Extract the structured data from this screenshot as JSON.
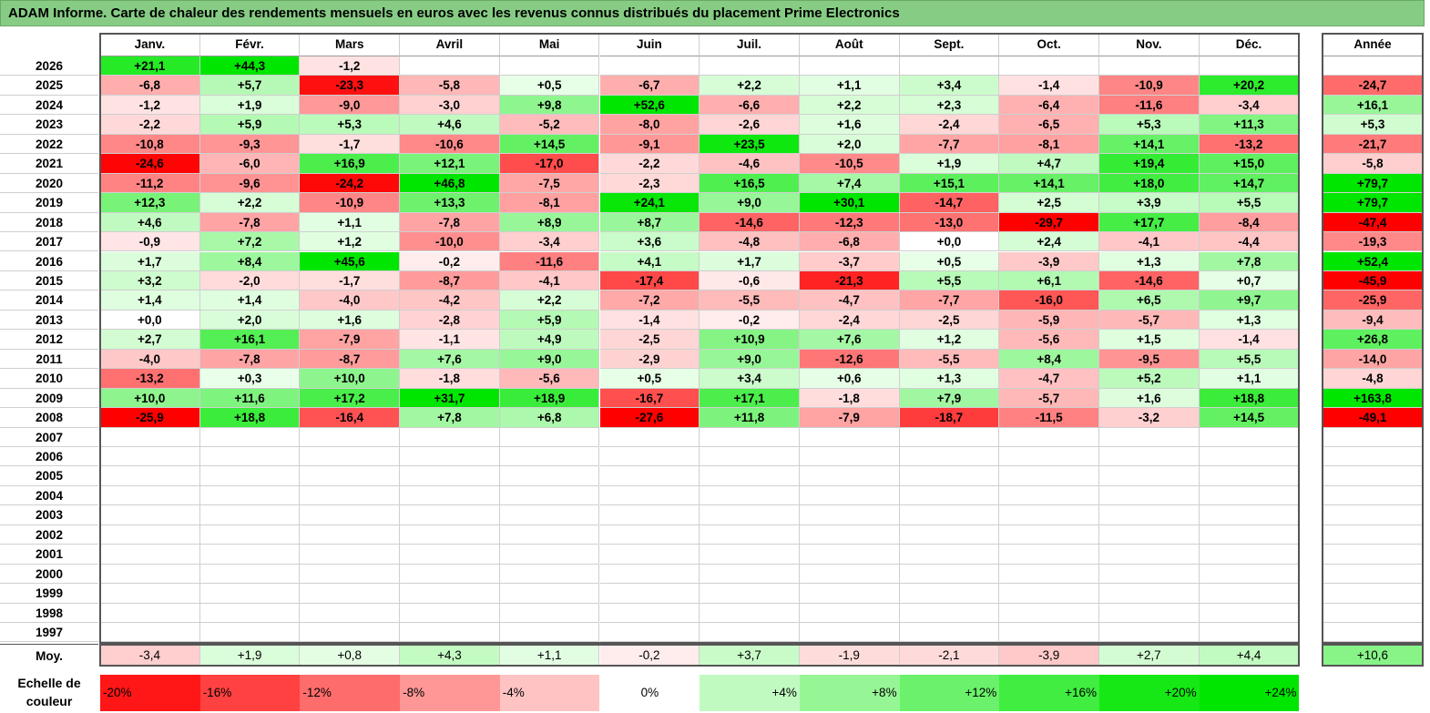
{
  "title": "ADAM Informe. Carte de chaleur des rendements mensuels en euros avec les revenus connus distribués du placement Prime Electronics",
  "chart_data": {
    "type": "heatmap",
    "months": [
      "Janv.",
      "Févr.",
      "Mars",
      "Avril",
      "Mai",
      "Juin",
      "Juil.",
      "Août",
      "Sept.",
      "Oct.",
      "Nov.",
      "Déc."
    ],
    "year_column_label": "Année",
    "average_row_label": "Moy.",
    "rows": [
      {
        "year": "2026",
        "months": [
          "+21,1",
          "+44,3",
          "-1,2",
          "",
          "",
          "",
          "",
          "",
          "",
          "",
          "",
          ""
        ],
        "annual": ""
      },
      {
        "year": "2025",
        "months": [
          "-6,8",
          "+5,7",
          "-23,3",
          "-5,8",
          "+0,5",
          "-6,7",
          "+2,2",
          "+1,1",
          "+3,4",
          "-1,4",
          "-10,9",
          "+20,2"
        ],
        "annual": "-24,7"
      },
      {
        "year": "2024",
        "months": [
          "-1,2",
          "+1,9",
          "-9,0",
          "-3,0",
          "+9,8",
          "+52,6",
          "-6,6",
          "+2,2",
          "+2,3",
          "-6,4",
          "-11,6",
          "-3,4"
        ],
        "annual": "+16,1"
      },
      {
        "year": "2023",
        "months": [
          "-2,2",
          "+5,9",
          "+5,3",
          "+4,6",
          "-5,2",
          "-8,0",
          "-2,6",
          "+1,6",
          "-2,4",
          "-6,5",
          "+5,3",
          "+11,3"
        ],
        "annual": "+5,3"
      },
      {
        "year": "2022",
        "months": [
          "-10,8",
          "-9,3",
          "-1,7",
          "-10,6",
          "+14,5",
          "-9,1",
          "+23,5",
          "+2,0",
          "-7,7",
          "-8,1",
          "+14,1",
          "-13,2"
        ],
        "annual": "-21,7"
      },
      {
        "year": "2021",
        "months": [
          "-24,6",
          "-6,0",
          "+16,9",
          "+12,1",
          "-17,0",
          "-2,2",
          "-4,6",
          "-10,5",
          "+1,9",
          "+4,7",
          "+19,4",
          "+15,0"
        ],
        "annual": "-5,8"
      },
      {
        "year": "2020",
        "months": [
          "-11,2",
          "-9,6",
          "-24,2",
          "+46,8",
          "-7,5",
          "-2,3",
          "+16,5",
          "+7,4",
          "+15,1",
          "+14,1",
          "+18,0",
          "+14,7"
        ],
        "annual": "+79,7"
      },
      {
        "year": "2019",
        "months": [
          "+12,3",
          "+2,2",
          "-10,9",
          "+13,3",
          "-8,1",
          "+24,1",
          "+9,0",
          "+30,1",
          "-14,7",
          "+2,5",
          "+3,9",
          "+5,5"
        ],
        "annual": "+79,7"
      },
      {
        "year": "2018",
        "months": [
          "+4,6",
          "-7,8",
          "+1,1",
          "-7,8",
          "+8,9",
          "+8,7",
          "-14,6",
          "-12,3",
          "-13,0",
          "-29,7",
          "+17,7",
          "-8,4"
        ],
        "annual": "-47,4"
      },
      {
        "year": "2017",
        "months": [
          "-0,9",
          "+7,2",
          "+1,2",
          "-10,0",
          "-3,4",
          "+3,6",
          "-4,8",
          "-6,8",
          "+0,0",
          "+2,4",
          "-4,1",
          "-4,4"
        ],
        "annual": "-19,3"
      },
      {
        "year": "2016",
        "months": [
          "+1,7",
          "+8,4",
          "+45,6",
          "-0,2",
          "-11,6",
          "+4,1",
          "+1,7",
          "-3,7",
          "+0,5",
          "-3,9",
          "+1,3",
          "+7,8"
        ],
        "annual": "+52,4"
      },
      {
        "year": "2015",
        "months": [
          "+3,2",
          "-2,0",
          "-1,7",
          "-8,7",
          "-4,1",
          "-17,4",
          "-0,6",
          "-21,3",
          "+5,5",
          "+6,1",
          "-14,6",
          "+0,7"
        ],
        "annual": "-45,9"
      },
      {
        "year": "2014",
        "months": [
          "+1,4",
          "+1,4",
          "-4,0",
          "-4,2",
          "+2,2",
          "-7,2",
          "-5,5",
          "-4,7",
          "-7,7",
          "-16,0",
          "+6,5",
          "+9,7"
        ],
        "annual": "-25,9"
      },
      {
        "year": "2013",
        "months": [
          "+0,0",
          "+2,0",
          "+1,6",
          "-2,8",
          "+5,9",
          "-1,4",
          "-0,2",
          "-2,4",
          "-2,5",
          "-5,9",
          "-5,7",
          "+1,3"
        ],
        "annual": "-9,4"
      },
      {
        "year": "2012",
        "months": [
          "+2,7",
          "+16,1",
          "-7,9",
          "-1,1",
          "+4,9",
          "-2,5",
          "+10,9",
          "+7,6",
          "+1,2",
          "-5,6",
          "+1,5",
          "-1,4"
        ],
        "annual": "+26,8"
      },
      {
        "year": "2011",
        "months": [
          "-4,0",
          "-7,8",
          "-8,7",
          "+7,6",
          "+9,0",
          "-2,9",
          "+9,0",
          "-12,6",
          "-5,5",
          "+8,4",
          "-9,5",
          "+5,5"
        ],
        "annual": "-14,0"
      },
      {
        "year": "2010",
        "months": [
          "-13,2",
          "+0,3",
          "+10,0",
          "-1,8",
          "-5,6",
          "+0,5",
          "+3,4",
          "+0,6",
          "+1,3",
          "-4,7",
          "+5,2",
          "+1,1"
        ],
        "annual": "-4,8"
      },
      {
        "year": "2009",
        "months": [
          "+10,0",
          "+11,6",
          "+17,2",
          "+31,7",
          "+18,9",
          "-16,7",
          "+17,1",
          "-1,8",
          "+7,9",
          "-5,7",
          "+1,6",
          "+18,8"
        ],
        "annual": "+163,8"
      },
      {
        "year": "2008",
        "months": [
          "-25,9",
          "+18,8",
          "-16,4",
          "+7,8",
          "+6,8",
          "-27,6",
          "+11,8",
          "-7,9",
          "-18,7",
          "-11,5",
          "-3,2",
          "+14,5"
        ],
        "annual": "-49,1"
      },
      {
        "year": "2007",
        "months": [
          "",
          "",
          "",
          "",
          "",
          "",
          "",
          "",
          "",
          "",
          "",
          ""
        ],
        "annual": ""
      },
      {
        "year": "2006",
        "months": [
          "",
          "",
          "",
          "",
          "",
          "",
          "",
          "",
          "",
          "",
          "",
          ""
        ],
        "annual": ""
      },
      {
        "year": "2005",
        "months": [
          "",
          "",
          "",
          "",
          "",
          "",
          "",
          "",
          "",
          "",
          "",
          ""
        ],
        "annual": ""
      },
      {
        "year": "2004",
        "months": [
          "",
          "",
          "",
          "",
          "",
          "",
          "",
          "",
          "",
          "",
          "",
          ""
        ],
        "annual": ""
      },
      {
        "year": "2003",
        "months": [
          "",
          "",
          "",
          "",
          "",
          "",
          "",
          "",
          "",
          "",
          "",
          ""
        ],
        "annual": ""
      },
      {
        "year": "2002",
        "months": [
          "",
          "",
          "",
          "",
          "",
          "",
          "",
          "",
          "",
          "",
          "",
          ""
        ],
        "annual": ""
      },
      {
        "year": "2001",
        "months": [
          "",
          "",
          "",
          "",
          "",
          "",
          "",
          "",
          "",
          "",
          "",
          ""
        ],
        "annual": ""
      },
      {
        "year": "2000",
        "months": [
          "",
          "",
          "",
          "",
          "",
          "",
          "",
          "",
          "",
          "",
          "",
          ""
        ],
        "annual": ""
      },
      {
        "year": "1999",
        "months": [
          "",
          "",
          "",
          "",
          "",
          "",
          "",
          "",
          "",
          "",
          "",
          ""
        ],
        "annual": ""
      },
      {
        "year": "1998",
        "months": [
          "",
          "",
          "",
          "",
          "",
          "",
          "",
          "",
          "",
          "",
          "",
          ""
        ],
        "annual": ""
      },
      {
        "year": "1997",
        "months": [
          "",
          "",
          "",
          "",
          "",
          "",
          "",
          "",
          "",
          "",
          "",
          ""
        ],
        "annual": ""
      }
    ],
    "average": {
      "months": [
        "-3,4",
        "+1,9",
        "+0,8",
        "+4,3",
        "+1,1",
        "-0,2",
        "+3,7",
        "-1,9",
        "-2,1",
        "-3,9",
        "+2,7",
        "+4,4"
      ],
      "annual": "+10,6"
    },
    "scale_label": "Echelle de couleur",
    "scale": [
      "-20%",
      "-16%",
      "-12%",
      "-8%",
      "-4%",
      "0%",
      "+4%",
      "+8%",
      "+12%",
      "+16%",
      "+20%",
      "+24%"
    ]
  }
}
